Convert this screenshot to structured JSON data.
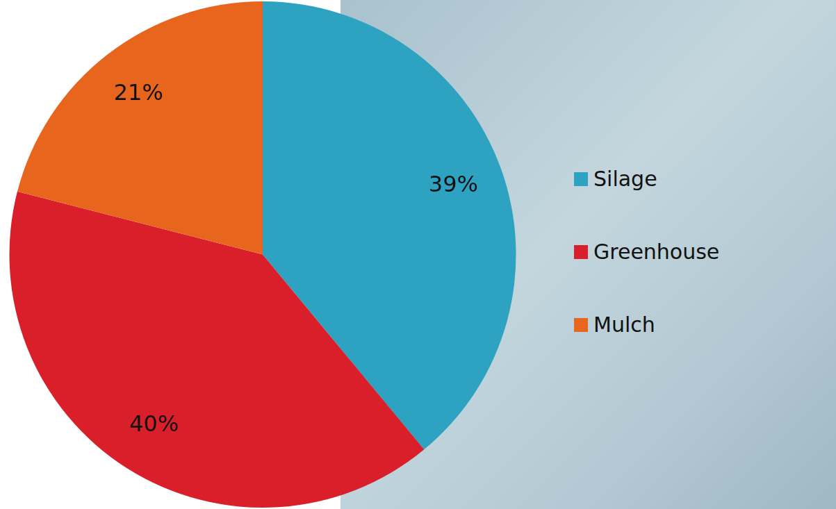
{
  "chart_data": {
    "type": "pie",
    "categories": [
      "Silage",
      "Greenhouse",
      "Mulch"
    ],
    "values": [
      39,
      40,
      21
    ],
    "value_labels": [
      "39%",
      "40%",
      "21%"
    ],
    "colors": [
      "#2ea3c1",
      "#d9202a",
      "#e8651e"
    ],
    "data_labels": true,
    "legend": "right"
  }
}
